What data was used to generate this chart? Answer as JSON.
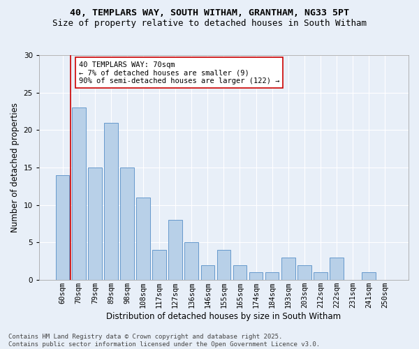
{
  "title_line1": "40, TEMPLARS WAY, SOUTH WITHAM, GRANTHAM, NG33 5PT",
  "title_line2": "Size of property relative to detached houses in South Witham",
  "xlabel": "Distribution of detached houses by size in South Witham",
  "ylabel": "Number of detached properties",
  "categories": [
    "60sqm",
    "70sqm",
    "79sqm",
    "89sqm",
    "98sqm",
    "108sqm",
    "117sqm",
    "127sqm",
    "136sqm",
    "146sqm",
    "155sqm",
    "165sqm",
    "174sqm",
    "184sqm",
    "193sqm",
    "203sqm",
    "212sqm",
    "222sqm",
    "231sqm",
    "241sqm",
    "250sqm"
  ],
  "values": [
    14,
    23,
    15,
    21,
    15,
    11,
    4,
    8,
    5,
    2,
    4,
    2,
    1,
    1,
    3,
    2,
    1,
    3,
    0,
    1,
    0
  ],
  "bar_color": "#b8d0e8",
  "bar_edge_color": "#6699cc",
  "vline_x_index": 1,
  "vline_color": "#cc0000",
  "annotation_text": "40 TEMPLARS WAY: 70sqm\n← 7% of detached houses are smaller (9)\n90% of semi-detached houses are larger (122) →",
  "annotation_box_color": "#ffffff",
  "annotation_box_edge_color": "#cc0000",
  "ylim": [
    0,
    30
  ],
  "yticks": [
    0,
    5,
    10,
    15,
    20,
    25,
    30
  ],
  "background_color": "#e8eff8",
  "grid_color": "#ffffff",
  "footer_line1": "Contains HM Land Registry data © Crown copyright and database right 2025.",
  "footer_line2": "Contains public sector information licensed under the Open Government Licence v3.0.",
  "title_fontsize": 9.5,
  "subtitle_fontsize": 9,
  "axis_label_fontsize": 8.5,
  "tick_fontsize": 7.5,
  "annotation_fontsize": 7.5,
  "footer_fontsize": 6.5
}
